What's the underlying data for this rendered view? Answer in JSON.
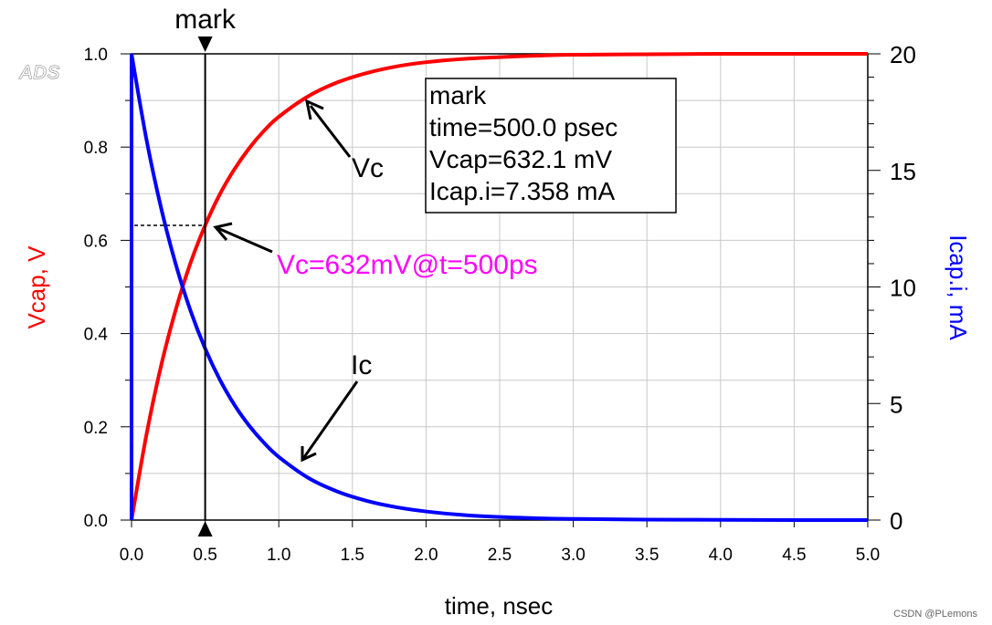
{
  "logo": "ADS",
  "watermark": "CSDN @PLemons",
  "colors": {
    "vcap": "#ff0000",
    "icap": "#0000ff",
    "annotation": "#ff00ff",
    "grid": "#c8c8c8",
    "axis": "#000000"
  },
  "marker": {
    "label": "mark",
    "x": 0.5,
    "readout": {
      "line1": "mark",
      "line2": "time=500.0 psec",
      "line3": "Vcap=632.1 mV",
      "line4": "Icap.i=7.358 mA"
    }
  },
  "annotations": {
    "vc_label": "Vc",
    "ic_label": "Ic",
    "point_label": "Vc=632mV@t=500ps"
  },
  "chart_data": {
    "type": "line",
    "title": "",
    "xlabel": "time, nsec",
    "ylabel_left": "Vcap, V",
    "ylabel_right": "Icap.i, mA",
    "xlim": [
      0,
      5
    ],
    "ylim_left": [
      0,
      1
    ],
    "ylim_right": [
      0,
      20
    ],
    "grid": true,
    "x_ticks": [
      "0.0",
      "0.5",
      "1.0",
      "1.5",
      "2.0",
      "2.5",
      "3.0",
      "3.5",
      "4.0",
      "4.5",
      "5.0"
    ],
    "y_left_ticks": [
      "0.0",
      "0.2",
      "0.4",
      "0.6",
      "0.8",
      "1.0"
    ],
    "y_right_ticks": [
      "0",
      "5",
      "10",
      "15",
      "20"
    ],
    "x": [
      0,
      0.1,
      0.2,
      0.3,
      0.4,
      0.5,
      0.6,
      0.7,
      0.8,
      0.9,
      1.0,
      1.2,
      1.4,
      1.6,
      1.8,
      2.0,
      2.25,
      2.5,
      2.75,
      3.0,
      3.5,
      4.0,
      4.5,
      5.0
    ],
    "series": [
      {
        "name": "Vcap",
        "axis": "left",
        "unit": "V",
        "values": [
          0.0,
          0.181,
          0.33,
          0.451,
          0.551,
          0.632,
          0.699,
          0.753,
          0.798,
          0.835,
          0.865,
          0.909,
          0.939,
          0.959,
          0.973,
          0.982,
          0.989,
          0.993,
          0.996,
          0.998,
          0.999,
          1.0,
          1.0,
          1.0
        ]
      },
      {
        "name": "Icap.i",
        "axis": "right",
        "unit": "mA",
        "values": [
          20.0,
          16.37,
          13.41,
          10.98,
          8.99,
          7.358,
          6.02,
          4.93,
          4.04,
          3.31,
          2.71,
          1.81,
          1.22,
          0.82,
          0.55,
          0.37,
          0.22,
          0.13,
          0.08,
          0.05,
          0.02,
          0.01,
          0.0,
          0.0
        ]
      }
    ]
  }
}
